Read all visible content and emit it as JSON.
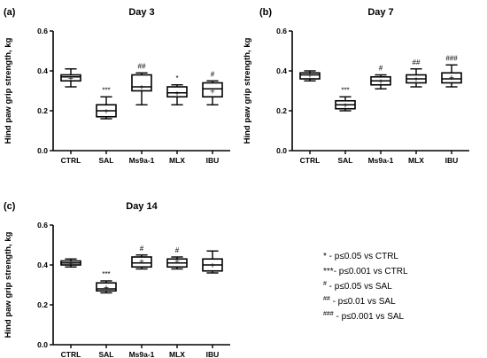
{
  "chart_data": [
    {
      "type": "box",
      "panel_label": "(a)",
      "title": "Day 3",
      "ylabel": "Hind paw grip strength, kg",
      "ylim": [
        0.0,
        0.6
      ],
      "yticks": [
        "0.0",
        "0.2",
        "0.4",
        "0.6"
      ],
      "categories": [
        "CTRL",
        "SAL",
        "Ms9a-1",
        "MLX",
        "IBU"
      ],
      "boxes": [
        {
          "min": 0.32,
          "q1": 0.35,
          "median": 0.37,
          "q3": 0.38,
          "max": 0.41,
          "mean": 0.365,
          "sig": ""
        },
        {
          "min": 0.16,
          "q1": 0.17,
          "median": 0.2,
          "q3": 0.23,
          "max": 0.27,
          "mean": 0.2,
          "sig": "***"
        },
        {
          "min": 0.23,
          "q1": 0.3,
          "median": 0.32,
          "q3": 0.38,
          "max": 0.39,
          "mean": 0.32,
          "sig": "##"
        },
        {
          "min": 0.23,
          "q1": 0.27,
          "median": 0.29,
          "q3": 0.32,
          "max": 0.33,
          "mean": 0.29,
          "sig": "*"
        },
        {
          "min": 0.23,
          "q1": 0.27,
          "median": 0.31,
          "q3": 0.34,
          "max": 0.35,
          "mean": 0.3,
          "sig": "#"
        }
      ]
    },
    {
      "type": "box",
      "panel_label": "(b)",
      "title": "Day 7",
      "ylabel": "Hind paw grip strength, kg",
      "ylim": [
        0.0,
        0.6
      ],
      "yticks": [
        "0.0",
        "0.2",
        "0.4",
        "0.6"
      ],
      "categories": [
        "CTRL",
        "SAL",
        "Ms9a-1",
        "MLX",
        "IBU"
      ],
      "boxes": [
        {
          "min": 0.35,
          "q1": 0.36,
          "median": 0.38,
          "q3": 0.39,
          "max": 0.4,
          "mean": 0.38,
          "sig": ""
        },
        {
          "min": 0.2,
          "q1": 0.21,
          "median": 0.23,
          "q3": 0.25,
          "max": 0.27,
          "mean": 0.23,
          "sig": "***"
        },
        {
          "min": 0.31,
          "q1": 0.33,
          "median": 0.35,
          "q3": 0.37,
          "max": 0.38,
          "mean": 0.35,
          "sig": "#"
        },
        {
          "min": 0.32,
          "q1": 0.34,
          "median": 0.36,
          "q3": 0.38,
          "max": 0.41,
          "mean": 0.36,
          "sig": "##"
        },
        {
          "min": 0.32,
          "q1": 0.34,
          "median": 0.36,
          "q3": 0.39,
          "max": 0.43,
          "mean": 0.37,
          "sig": "###"
        }
      ]
    },
    {
      "type": "box",
      "panel_label": "(c)",
      "title": "Day 14",
      "ylabel": "Hind paw grip strength, kg",
      "ylim": [
        0.0,
        0.6
      ],
      "yticks": [
        "0.0",
        "0.2",
        "0.4",
        "0.6"
      ],
      "categories": [
        "CTRL",
        "SAL",
        "Ms9a-1",
        "MLX",
        "IBU"
      ],
      "boxes": [
        {
          "min": 0.39,
          "q1": 0.4,
          "median": 0.41,
          "q3": 0.42,
          "max": 0.43,
          "mean": 0.41,
          "sig": ""
        },
        {
          "min": 0.26,
          "q1": 0.27,
          "median": 0.28,
          "q3": 0.31,
          "max": 0.32,
          "mean": 0.29,
          "sig": "***"
        },
        {
          "min": 0.38,
          "q1": 0.39,
          "median": 0.41,
          "q3": 0.44,
          "max": 0.45,
          "mean": 0.42,
          "sig": "#"
        },
        {
          "min": 0.38,
          "q1": 0.39,
          "median": 0.41,
          "q3": 0.43,
          "max": 0.44,
          "mean": 0.42,
          "sig": "#"
        },
        {
          "min": 0.36,
          "q1": 0.37,
          "median": 0.4,
          "q3": 0.43,
          "max": 0.47,
          "mean": 0.4,
          "sig": ""
        }
      ]
    }
  ],
  "legend": [
    {
      "sym": "*",
      "text": " - p≤0.05 vs CTRL"
    },
    {
      "sym": "***",
      "text": "- p≤0.001 vs CTRL"
    },
    {
      "sym": "#",
      "text": " - p≤0.05 vs SAL"
    },
    {
      "sym": "##",
      "text": " - p≤0.01 vs SAL"
    },
    {
      "sym": "###",
      "text": " - p≤0.001 vs SAL"
    }
  ]
}
